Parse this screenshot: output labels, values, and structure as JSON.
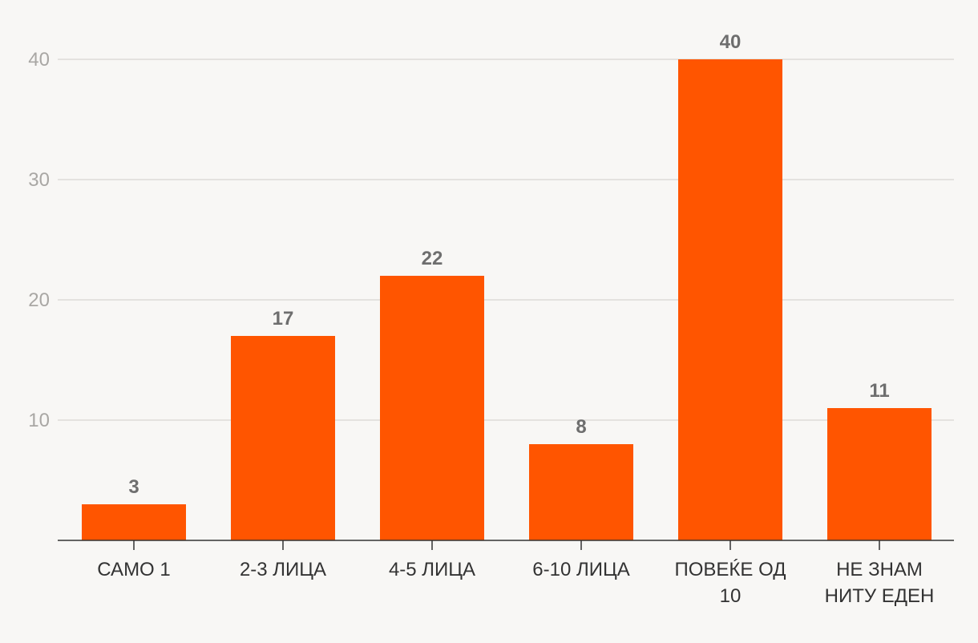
{
  "chart_data": {
    "type": "bar",
    "categories": [
      [
        "САМО 1"
      ],
      [
        "2-3 ЛИЦА"
      ],
      [
        "4-5 ЛИЦА"
      ],
      [
        "6-10 ЛИЦА"
      ],
      [
        "ПОВЕЌЕ ОД",
        "10"
      ],
      [
        "НЕ ЗНАМ",
        "НИТУ ЕДЕН"
      ]
    ],
    "values": [
      3,
      17,
      22,
      8,
      40,
      11
    ],
    "ylim": [
      0,
      40
    ],
    "yticks": [
      10,
      20,
      30,
      40
    ],
    "grid": true,
    "colors": {
      "bar": "#ff5500"
    }
  }
}
